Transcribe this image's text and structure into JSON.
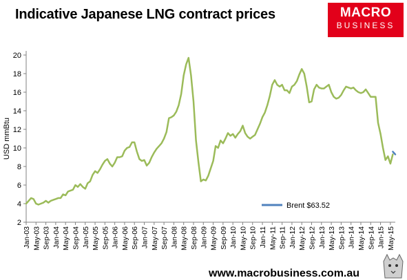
{
  "header": {
    "title": "Indicative Japanese LNG contract prices"
  },
  "logo": {
    "main": "MACRO",
    "sub": "BUSINESS"
  },
  "footer": {
    "website": "www.macrobusiness.com.au"
  },
  "colors": {
    "lng_line": "#9bbb59",
    "brent_line": "#4f81bd",
    "axis": "#808080",
    "logo_bg": "#e2001a"
  },
  "chart_data": {
    "type": "line",
    "ylabel": "USD mmBtu",
    "ylim": [
      2,
      20
    ],
    "yticks": [
      2,
      4,
      6,
      8,
      10,
      12,
      14,
      16,
      18,
      20
    ],
    "grid": false,
    "legend_position": "bottom-right",
    "xticks": [
      "Jan-03",
      "May-03",
      "Sep-03",
      "Jan-04",
      "May-04",
      "Sep-04",
      "Jan-05",
      "May-05",
      "Sep-05",
      "Jan-06",
      "May-06",
      "Sep-06",
      "Jan-07",
      "May-07",
      "Sep-07",
      "Jan-08",
      "May-08",
      "Sep-08",
      "Jan-09",
      "May-09",
      "Sep-09",
      "Jan-10",
      "May-10",
      "Sep-10",
      "Jan-11",
      "May-11",
      "Sep-11",
      "Jan-12",
      "May-12",
      "Sep-12",
      "Jan-13",
      "May-13",
      "Sep-13",
      "Jan-14",
      "May-14",
      "Sep-14",
      "Jan-15",
      "May-15"
    ],
    "series": [
      {
        "name": "",
        "color": "#9bbb59",
        "points": [
          [
            "Jan-03",
            4.0
          ],
          [
            "Feb-03",
            4.3
          ],
          [
            "Mar-03",
            4.6
          ],
          [
            "Apr-03",
            4.5
          ],
          [
            "May-03",
            4.0
          ],
          [
            "Jun-03",
            3.9
          ],
          [
            "Jul-03",
            4.0
          ],
          [
            "Aug-03",
            4.1
          ],
          [
            "Sep-03",
            4.3
          ],
          [
            "Oct-03",
            4.1
          ],
          [
            "Nov-03",
            4.3
          ],
          [
            "Dec-03",
            4.4
          ],
          [
            "Jan-04",
            4.5
          ],
          [
            "Feb-04",
            4.6
          ],
          [
            "Mar-04",
            4.6
          ],
          [
            "Apr-04",
            5.0
          ],
          [
            "May-04",
            4.9
          ],
          [
            "Jun-04",
            5.3
          ],
          [
            "Jul-04",
            5.4
          ],
          [
            "Aug-04",
            5.5
          ],
          [
            "Sep-04",
            6.0
          ],
          [
            "Oct-04",
            5.8
          ],
          [
            "Nov-04",
            6.1
          ],
          [
            "Dec-04",
            5.8
          ],
          [
            "Jan-05",
            5.6
          ],
          [
            "Feb-05",
            6.2
          ],
          [
            "Mar-05",
            6.4
          ],
          [
            "Apr-05",
            7.1
          ],
          [
            "May-05",
            7.5
          ],
          [
            "Jun-05",
            7.3
          ],
          [
            "Jul-05",
            7.7
          ],
          [
            "Aug-05",
            8.2
          ],
          [
            "Sep-05",
            8.6
          ],
          [
            "Oct-05",
            8.8
          ],
          [
            "Nov-05",
            8.3
          ],
          [
            "Dec-05",
            8.0
          ],
          [
            "Jan-06",
            8.4
          ],
          [
            "Feb-06",
            9.0
          ],
          [
            "Mar-06",
            9.0
          ],
          [
            "Apr-06",
            9.1
          ],
          [
            "May-06",
            9.7
          ],
          [
            "Jun-06",
            10.0
          ],
          [
            "Jul-06",
            10.1
          ],
          [
            "Aug-06",
            10.6
          ],
          [
            "Sep-06",
            10.6
          ],
          [
            "Oct-06",
            9.6
          ],
          [
            "Nov-06",
            8.8
          ],
          [
            "Dec-06",
            8.6
          ],
          [
            "Jan-07",
            8.7
          ],
          [
            "Feb-07",
            8.1
          ],
          [
            "Mar-07",
            8.4
          ],
          [
            "Apr-07",
            9.0
          ],
          [
            "May-07",
            9.5
          ],
          [
            "Jun-07",
            9.9
          ],
          [
            "Jul-07",
            10.2
          ],
          [
            "Aug-07",
            10.5
          ],
          [
            "Sep-07",
            11.0
          ],
          [
            "Oct-07",
            11.7
          ],
          [
            "Nov-07",
            13.2
          ],
          [
            "Dec-07",
            13.3
          ],
          [
            "Jan-08",
            13.5
          ],
          [
            "Feb-08",
            13.9
          ],
          [
            "Mar-08",
            14.6
          ],
          [
            "Apr-08",
            15.8
          ],
          [
            "May-08",
            17.8
          ],
          [
            "Jun-08",
            19.0
          ],
          [
            "Jul-08",
            19.7
          ],
          [
            "Aug-08",
            17.8
          ],
          [
            "Sep-08",
            15.0
          ],
          [
            "Oct-08",
            10.8
          ],
          [
            "Nov-08",
            8.5
          ],
          [
            "Dec-08",
            6.4
          ],
          [
            "Jan-09",
            6.6
          ],
          [
            "Feb-09",
            6.5
          ],
          [
            "Mar-09",
            7.0
          ],
          [
            "Apr-09",
            7.8
          ],
          [
            "May-09",
            8.6
          ],
          [
            "Jun-09",
            10.2
          ],
          [
            "Jul-09",
            10.0
          ],
          [
            "Aug-09",
            10.8
          ],
          [
            "Sep-09",
            10.5
          ],
          [
            "Oct-09",
            11.0
          ],
          [
            "Nov-09",
            11.6
          ],
          [
            "Dec-09",
            11.3
          ],
          [
            "Jan-10",
            11.5
          ],
          [
            "Feb-10",
            11.1
          ],
          [
            "Mar-10",
            11.5
          ],
          [
            "Apr-10",
            11.8
          ],
          [
            "May-10",
            12.4
          ],
          [
            "Jun-10",
            11.6
          ],
          [
            "Jul-10",
            11.2
          ],
          [
            "Aug-10",
            11.0
          ],
          [
            "Sep-10",
            11.2
          ],
          [
            "Oct-10",
            11.4
          ],
          [
            "Nov-10",
            12.0
          ],
          [
            "Dec-10",
            12.6
          ],
          [
            "Jan-11",
            13.3
          ],
          [
            "Feb-11",
            13.8
          ],
          [
            "Mar-11",
            14.6
          ],
          [
            "Apr-11",
            15.6
          ],
          [
            "May-11",
            16.8
          ],
          [
            "Jun-11",
            17.3
          ],
          [
            "Jul-11",
            16.8
          ],
          [
            "Aug-11",
            16.6
          ],
          [
            "Sep-11",
            16.8
          ],
          [
            "Oct-11",
            16.2
          ],
          [
            "Nov-11",
            16.2
          ],
          [
            "Dec-11",
            15.9
          ],
          [
            "Jan-12",
            16.6
          ],
          [
            "Feb-12",
            16.8
          ],
          [
            "Mar-12",
            17.2
          ],
          [
            "Apr-12",
            17.9
          ],
          [
            "May-12",
            18.5
          ],
          [
            "Jun-12",
            18.0
          ],
          [
            "Jul-12",
            16.6
          ],
          [
            "Aug-12",
            14.9
          ],
          [
            "Sep-12",
            15.0
          ],
          [
            "Oct-12",
            16.3
          ],
          [
            "Nov-12",
            16.8
          ],
          [
            "Dec-12",
            16.5
          ],
          [
            "Jan-13",
            16.4
          ],
          [
            "Feb-13",
            16.4
          ],
          [
            "Mar-13",
            16.6
          ],
          [
            "Apr-13",
            16.8
          ],
          [
            "May-13",
            16.0
          ],
          [
            "Jun-13",
            15.5
          ],
          [
            "Jul-13",
            15.3
          ],
          [
            "Aug-13",
            15.4
          ],
          [
            "Sep-13",
            15.7
          ],
          [
            "Oct-13",
            16.2
          ],
          [
            "Nov-13",
            16.6
          ],
          [
            "Dec-13",
            16.5
          ],
          [
            "Jan-14",
            16.4
          ],
          [
            "Feb-14",
            16.5
          ],
          [
            "Mar-14",
            16.2
          ],
          [
            "Apr-14",
            16.0
          ],
          [
            "May-14",
            15.9
          ],
          [
            "Jun-14",
            16.0
          ],
          [
            "Jul-14",
            16.3
          ],
          [
            "Aug-14",
            15.9
          ],
          [
            "Sep-14",
            15.5
          ],
          [
            "Oct-14",
            15.5
          ],
          [
            "Nov-14",
            15.5
          ],
          [
            "Dec-14",
            12.7
          ],
          [
            "Jan-15",
            11.5
          ],
          [
            "Feb-15",
            10.0
          ],
          [
            "Mar-15",
            8.7
          ],
          [
            "Apr-15",
            9.1
          ],
          [
            "May-15",
            8.3
          ],
          [
            "Jun-15",
            9.3
          ]
        ]
      },
      {
        "name": "Brent $63.52",
        "color": "#4f81bd",
        "points": [
          [
            "Jun-15",
            9.6
          ],
          [
            "Jul-15",
            9.3
          ]
        ]
      }
    ]
  }
}
